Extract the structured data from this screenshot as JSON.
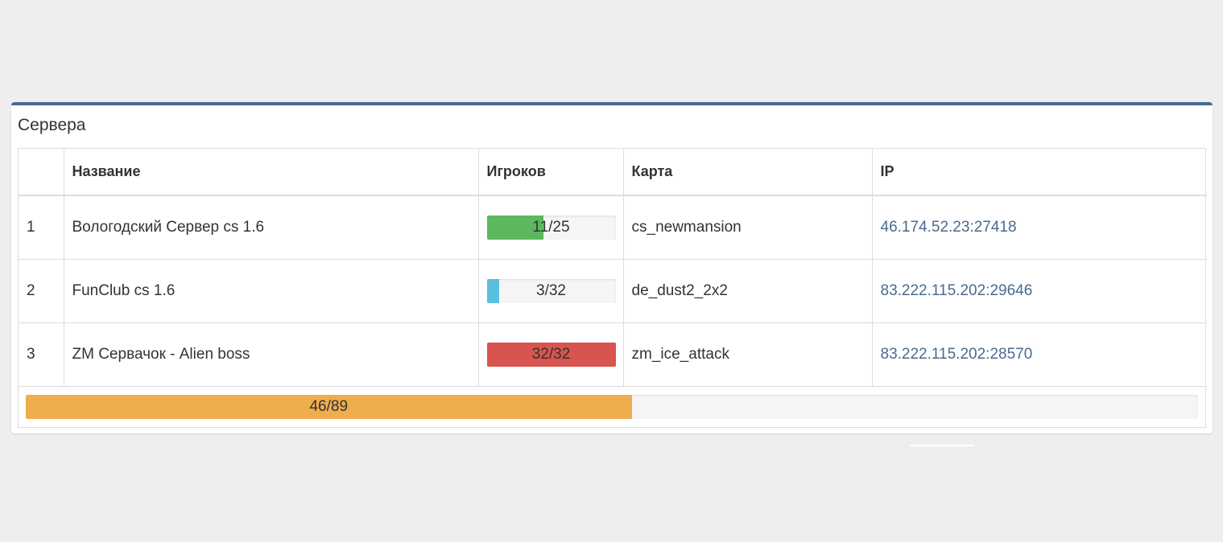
{
  "panel": {
    "title": "Сервера",
    "accent_color": "#4a6a8f"
  },
  "table": {
    "headers": {
      "index": "",
      "name": "Название",
      "players": "Игроков",
      "map": "Карта",
      "ip": "IP"
    },
    "rows": [
      {
        "index": "1",
        "name": "Вологодский Сервер cs 1.6",
        "players_label": "11/25",
        "players_current": 11,
        "players_max": 25,
        "bar_color": "#5cb85c",
        "map": "cs_newmansion",
        "ip": "46.174.52.23:27418"
      },
      {
        "index": "2",
        "name": "FunClub cs 1.6",
        "players_label": "3/32",
        "players_current": 3,
        "players_max": 32,
        "bar_color": "#5bc0de",
        "map": "de_dust2_2x2",
        "ip": "83.222.115.202:29646"
      },
      {
        "index": "3",
        "name": "ZM Сервачок - Alien boss",
        "players_label": "32/32",
        "players_current": 32,
        "players_max": 32,
        "bar_color": "#d9534f",
        "map": "zm_ice_attack",
        "ip": "83.222.115.202:28570"
      }
    ]
  },
  "total": {
    "label": "46/89",
    "current": 46,
    "max": 89,
    "bar_color": "#f0ad4e"
  }
}
